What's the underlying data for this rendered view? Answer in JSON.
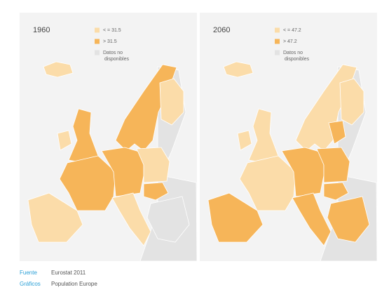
{
  "panels": [
    {
      "year": "1960",
      "legend": [
        {
          "label": "< = 31.5",
          "color": "#fbdca9"
        },
        {
          "label": "> 31.5",
          "color": "#f6b559"
        },
        {
          "label": "Datos no disponibles",
          "color": "#e3e3e3"
        }
      ]
    },
    {
      "year": "2060",
      "legend": [
        {
          "label": "< = 47.2",
          "color": "#fbdca9"
        },
        {
          "label": "> 47.2",
          "color": "#f6b559"
        },
        {
          "label": "Datos no disponibles",
          "color": "#e3e3e3"
        }
      ]
    }
  ],
  "footer": [
    {
      "key": "Fuente",
      "value": "Eurostat 2011"
    },
    {
      "key": "Gráficos",
      "value": "Population Europe"
    }
  ]
}
